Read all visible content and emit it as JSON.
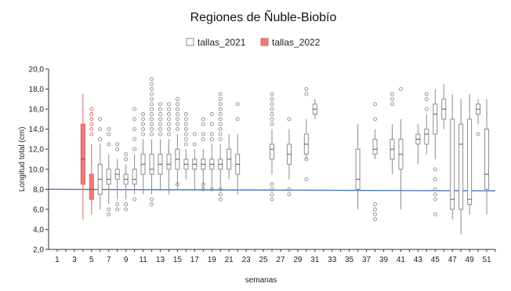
{
  "chart_data": {
    "type": "boxplot",
    "title": "Regiones de Ñuble-Biobío",
    "xlabel": "semanas",
    "ylabel": "Longitud total (cm)",
    "ylim": [
      2.0,
      20.0
    ],
    "xlim": [
      0,
      52
    ],
    "y_ticks": [
      "2,0",
      "4,0",
      "6,0",
      "8,0",
      "10,0",
      "12,0",
      "14,0",
      "16,0",
      "18,0",
      "20,0"
    ],
    "y_tick_values": [
      2,
      4,
      6,
      8,
      10,
      12,
      14,
      16,
      18,
      20
    ],
    "x_ticks": [
      "1",
      "3",
      "5",
      "7",
      "9",
      "11",
      "13",
      "15",
      "17",
      "19",
      "21",
      "23",
      "25",
      "27",
      "29",
      "31",
      "33",
      "35",
      "37",
      "39",
      "41",
      "43",
      "45",
      "47",
      "49",
      "51"
    ],
    "x_tick_values": [
      1,
      3,
      5,
      7,
      9,
      11,
      13,
      15,
      17,
      19,
      21,
      23,
      25,
      27,
      29,
      31,
      33,
      35,
      37,
      39,
      41,
      43,
      45,
      47,
      49,
      51
    ],
    "legend": {
      "position": "top-center",
      "entries": [
        "tallas_2021",
        "tallas_2022"
      ]
    },
    "colors": {
      "tallas_2021": "#8c8c8c",
      "tallas_2022": "#e06060",
      "tallas_2022_fill": "#f07a7a",
      "reference_line": "#4a78c0"
    },
    "reference_line": {
      "y": 8.0
    },
    "series": [
      {
        "name": "tallas_2022",
        "boxes": [
          {
            "week": 4,
            "whislo": 5.0,
            "q1": 8.5,
            "med": 11.0,
            "q3": 14.5,
            "whishi": 17.5,
            "fliers": []
          },
          {
            "week": 5,
            "whislo": 5.5,
            "q1": 7.0,
            "med": 8.0,
            "q3": 9.5,
            "whishi": 12.5,
            "fliers": [
              13.5,
              14.0,
              14.5,
              15.0,
              15.5,
              16.0
            ]
          }
        ]
      },
      {
        "name": "tallas_2021",
        "boxes": [
          {
            "week": 6,
            "whislo": 6.0,
            "q1": 7.5,
            "med": 9.0,
            "q3": 10.5,
            "whishi": 12.5,
            "fliers": [
              13.0,
              14.0,
              15.0
            ]
          },
          {
            "week": 7,
            "whislo": 6.5,
            "q1": 8.5,
            "med": 9.0,
            "q3": 10.0,
            "whishi": 11.5,
            "fliers": [
              5.5,
              6.0,
              12.5,
              13.5,
              14.0
            ]
          },
          {
            "week": 8,
            "whislo": 7.0,
            "q1": 9.0,
            "med": 9.5,
            "q3": 10.0,
            "whishi": 11.0,
            "fliers": [
              6.0,
              6.5,
              12.0,
              12.5
            ]
          },
          {
            "week": 9,
            "whislo": 7.0,
            "q1": 8.5,
            "med": 9.0,
            "q3": 9.5,
            "whishi": 10.5,
            "fliers": [
              6.0,
              6.5,
              11.0,
              11.5
            ]
          },
          {
            "week": 10,
            "whislo": 7.5,
            "q1": 8.5,
            "med": 9.0,
            "q3": 10.0,
            "whishi": 11.5,
            "fliers": [
              7.0,
              12.0,
              13.0,
              14.0,
              15.0,
              16.0
            ]
          },
          {
            "week": 11,
            "whislo": 7.5,
            "q1": 9.5,
            "med": 10.5,
            "q3": 11.5,
            "whishi": 13.0,
            "fliers": [
              13.5,
              14.0,
              14.5,
              15.0,
              15.5
            ]
          },
          {
            "week": 12,
            "whislo": 7.5,
            "q1": 9.5,
            "med": 10.0,
            "q3": 11.5,
            "whishi": 13.0,
            "fliers": [
              6.5,
              7.0,
              13.5,
              14.0,
              14.5,
              15.0,
              15.5,
              16.0,
              16.5,
              17.0,
              17.5,
              18.0,
              18.5,
              19.0
            ]
          },
          {
            "week": 13,
            "whislo": 8.0,
            "q1": 9.5,
            "med": 10.5,
            "q3": 11.5,
            "whishi": 13.0,
            "fliers": [
              13.5,
              14.0,
              14.5,
              15.0,
              15.5,
              16.0,
              16.5
            ]
          },
          {
            "week": 14,
            "whislo": 7.5,
            "q1": 10.0,
            "med": 10.5,
            "q3": 11.5,
            "whishi": 13.0,
            "fliers": [
              13.5,
              14.0,
              14.5,
              15.0,
              15.5,
              16.0,
              16.5
            ]
          },
          {
            "week": 15,
            "whislo": 8.0,
            "q1": 10.0,
            "med": 11.0,
            "q3": 12.0,
            "whishi": 13.5,
            "fliers": [
              8.5,
              14.0,
              14.5,
              15.0,
              15.5,
              16.0,
              16.5,
              17.0
            ]
          },
          {
            "week": 16,
            "whislo": 9.0,
            "q1": 10.0,
            "med": 10.5,
            "q3": 11.0,
            "whishi": 12.0,
            "fliers": [
              12.5,
              13.0,
              13.5,
              14.0,
              14.5,
              15.0,
              15.5
            ]
          },
          {
            "week": 17,
            "whislo": 8.0,
            "q1": 10.0,
            "med": 10.5,
            "q3": 11.0,
            "whishi": 12.0,
            "fliers": [
              12.5,
              13.5
            ]
          },
          {
            "week": 18,
            "whislo": 8.0,
            "q1": 10.0,
            "med": 10.5,
            "q3": 11.0,
            "whishi": 12.0,
            "fliers": [
              8.0,
              8.5,
              13.0,
              13.5,
              14.5,
              15.0
            ]
          },
          {
            "week": 19,
            "whislo": 8.0,
            "q1": 10.0,
            "med": 10.5,
            "q3": 11.0,
            "whishi": 12.5,
            "fliers": [
              8.0,
              13.0,
              13.5,
              14.5,
              15.5
            ]
          },
          {
            "week": 20,
            "whislo": 8.0,
            "q1": 10.0,
            "med": 10.5,
            "q3": 11.0,
            "whishi": 12.5,
            "fliers": [
              7.0,
              7.5,
              8.0,
              13.0,
              13.5,
              14.0,
              14.5,
              15.0,
              15.5,
              16.0,
              16.5,
              17.0,
              17.5
            ]
          },
          {
            "week": 21,
            "whislo": 9.0,
            "q1": 10.0,
            "med": 11.0,
            "q3": 12.0,
            "whishi": 13.5,
            "fliers": []
          },
          {
            "week": 22,
            "whislo": 7.5,
            "q1": 9.5,
            "med": 10.5,
            "q3": 11.5,
            "whishi": 13.5,
            "fliers": [
              15.0,
              16.5
            ]
          },
          {
            "week": 26,
            "whislo": 9.5,
            "q1": 11.0,
            "med": 12.0,
            "q3": 12.5,
            "whishi": 14.0,
            "fliers": [
              7.0,
              7.5,
              8.0,
              8.5,
              14.5,
              15.0,
              15.5,
              16.0,
              16.5,
              17.0,
              17.5
            ]
          },
          {
            "week": 28,
            "whislo": 9.0,
            "q1": 10.5,
            "med": 11.5,
            "q3": 12.5,
            "whishi": 14.0,
            "fliers": [
              7.5,
              8.0,
              15.0
            ]
          },
          {
            "week": 30,
            "whislo": 11.0,
            "q1": 11.5,
            "med": 12.5,
            "q3": 13.5,
            "whishi": 15.0,
            "fliers": [
              9.0,
              11.0,
              17.5,
              18.0
            ]
          },
          {
            "week": 31,
            "whislo": 15.0,
            "q1": 15.5,
            "med": 16.0,
            "q3": 16.5,
            "whishi": 17.0,
            "fliers": []
          },
          {
            "week": 36,
            "whislo": 6.0,
            "q1": 8.0,
            "med": 9.0,
            "q3": 12.0,
            "whishi": 14.5,
            "fliers": []
          },
          {
            "week": 38,
            "whislo": 11.0,
            "q1": 11.5,
            "med": 12.0,
            "q3": 13.0,
            "whishi": 14.0,
            "fliers": [
              5.0,
              5.5,
              6.0,
              6.5,
              15.0,
              16.5
            ]
          },
          {
            "week": 40,
            "whislo": 9.5,
            "q1": 11.0,
            "med": 12.0,
            "q3": 13.0,
            "whishi": 14.5,
            "fliers": [
              16.5,
              17.0,
              17.5
            ]
          },
          {
            "week": 41,
            "whislo": 6.0,
            "q1": 10.0,
            "med": 11.5,
            "q3": 13.0,
            "whishi": 15.0,
            "fliers": [
              18.0
            ]
          },
          {
            "week": 43,
            "whislo": 10.5,
            "q1": 12.5,
            "med": 13.0,
            "q3": 13.5,
            "whishi": 14.5,
            "fliers": []
          },
          {
            "week": 44,
            "whislo": 11.5,
            "q1": 12.5,
            "med": 13.5,
            "q3": 14.0,
            "whishi": 15.5,
            "fliers": [
              16.0,
              17.0,
              17.5
            ]
          },
          {
            "week": 45,
            "whislo": 11.0,
            "q1": 13.5,
            "med": 15.5,
            "q3": 16.5,
            "whishi": 18.0,
            "fliers": [
              5.5,
              7.0,
              7.5,
              8.0,
              9.0,
              10.0
            ]
          },
          {
            "week": 46,
            "whislo": 14.0,
            "q1": 15.0,
            "med": 16.0,
            "q3": 17.0,
            "whishi": 18.5,
            "fliers": []
          },
          {
            "week": 47,
            "whislo": 5.0,
            "q1": 6.0,
            "med": 7.0,
            "q3": 15.0,
            "whishi": 17.5,
            "fliers": []
          },
          {
            "week": 48,
            "whislo": 3.5,
            "q1": 6.0,
            "med": 12.5,
            "q3": 14.5,
            "whishi": 17.0,
            "fliers": []
          },
          {
            "week": 49,
            "whislo": 5.5,
            "q1": 6.5,
            "med": 7.0,
            "q3": 15.0,
            "whishi": 17.5,
            "fliers": []
          },
          {
            "week": 50,
            "whislo": 14.5,
            "q1": 15.5,
            "med": 16.0,
            "q3": 16.5,
            "whishi": 17.0,
            "fliers": [
              13.5
            ]
          },
          {
            "week": 51,
            "whislo": 5.5,
            "q1": 8.0,
            "med": 9.5,
            "q3": 14.0,
            "whishi": 17.0,
            "fliers": []
          }
        ]
      }
    ]
  }
}
